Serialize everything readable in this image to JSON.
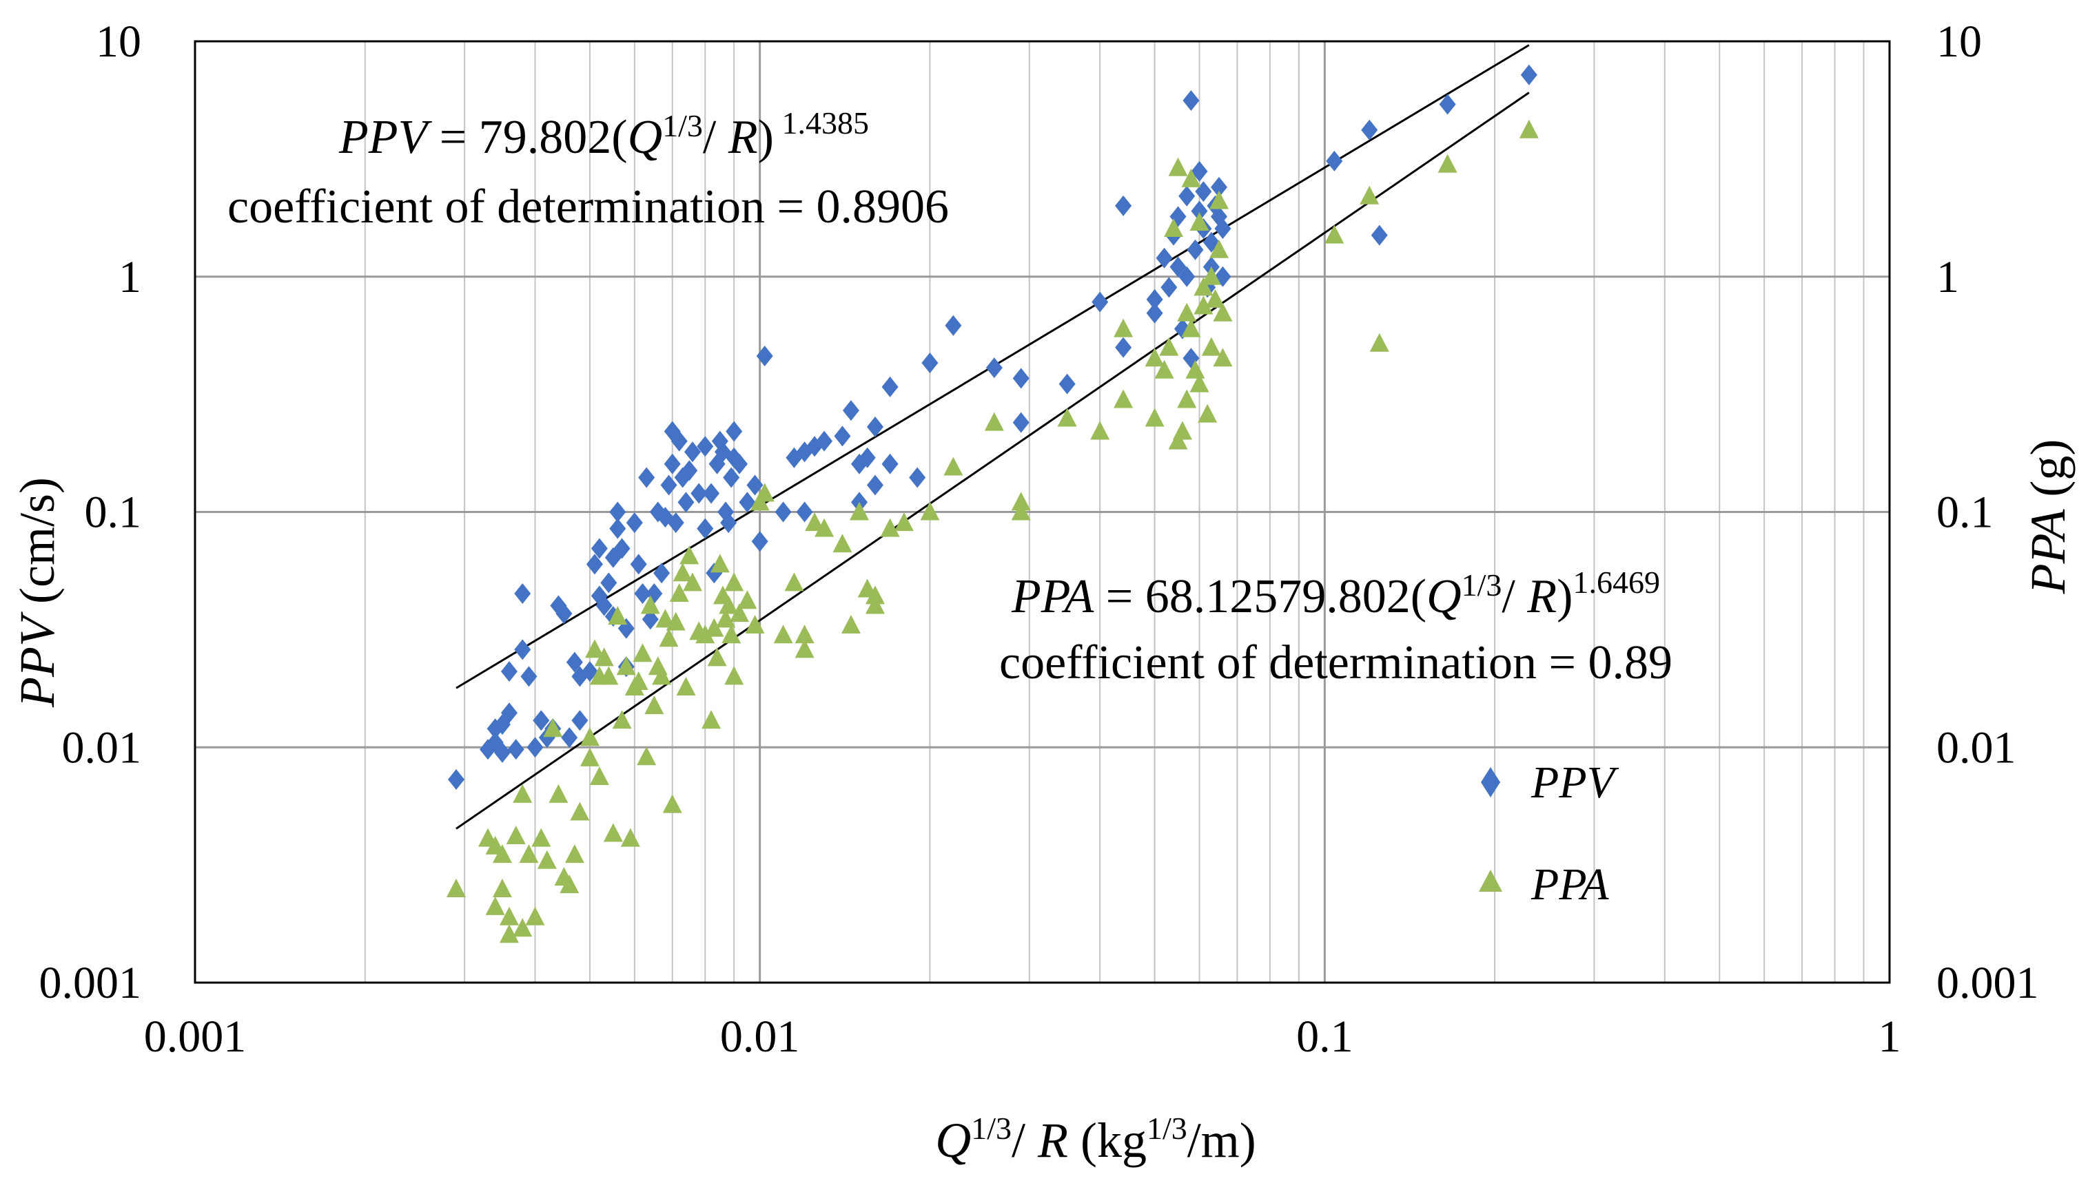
{
  "chart_data": {
    "type": "scatter",
    "title": "",
    "xscale": "log",
    "yscale": "log",
    "xlim": [
      0.001,
      1
    ],
    "ylim": [
      0.001,
      10
    ],
    "x_ticks": [
      "0.001",
      "0.01",
      "0.1",
      "1"
    ],
    "y_ticks": [
      "0.001",
      "0.01",
      "0.1",
      "1",
      "10"
    ],
    "y2_ticks": [
      "0.001",
      "0.01",
      "0.1",
      "1",
      "10"
    ],
    "xlabel": {
      "a": "Q",
      "a_sup": "1/3",
      "b": "/ ",
      "c": "R",
      "d": " (kg",
      "d_sup": "1/3",
      "e": "/m)"
    },
    "ylabel": {
      "a": "PPV",
      "b": " (cm/s)"
    },
    "y2label": {
      "a": "PPA",
      "b": " (g)"
    },
    "grid": true,
    "legend": [
      {
        "label": "PPV",
        "marker": "diamond",
        "color": "#4472C4"
      },
      {
        "label": "PPA",
        "marker": "triangle",
        "color": "#9BBB59"
      }
    ],
    "annotations": {
      "ppv_eq": {
        "a": "PPV",
        "b": " = 79.802(",
        "c": "Q",
        "c_sup": "1/3",
        "d": "/ ",
        "e": "R",
        "f": ")",
        "exp": " 1.4385"
      },
      "ppv_r2": "coefficient of determination = 0.8906",
      "ppa_eq": {
        "a": "PPA",
        "b": " = 68.12579.802(",
        "c": "Q",
        "c_sup": "1/3",
        "d": "/ ",
        "e": "R",
        "f": ")",
        "exp": "1.6469"
      },
      "ppa_r2": "coefficient of determination = 0.89"
    },
    "fits": [
      {
        "name": "PPV fit",
        "coef": 79.802,
        "exp": 1.4385,
        "xrange": [
          0.0029,
          0.23
        ]
      },
      {
        "name": "PPA fit",
        "coef": 68.12579802,
        "exp": 1.6469,
        "xrange": [
          0.0029,
          0.23
        ]
      }
    ],
    "series": [
      {
        "name": "PPV",
        "points": [
          [
            0.0029,
            0.0073
          ],
          [
            0.0033,
            0.0098
          ],
          [
            0.0034,
            0.0105
          ],
          [
            0.0035,
            0.0095
          ],
          [
            0.0034,
            0.012
          ],
          [
            0.0036,
            0.014
          ],
          [
            0.0035,
            0.0125
          ],
          [
            0.0036,
            0.021
          ],
          [
            0.0037,
            0.0098
          ],
          [
            0.0038,
            0.045
          ],
          [
            0.0038,
            0.026
          ],
          [
            0.0039,
            0.02
          ],
          [
            0.004,
            0.01
          ],
          [
            0.0041,
            0.013
          ],
          [
            0.0042,
            0.011
          ],
          [
            0.0043,
            0.012
          ],
          [
            0.0044,
            0.04
          ],
          [
            0.0045,
            0.037
          ],
          [
            0.0046,
            0.011
          ],
          [
            0.0047,
            0.023
          ],
          [
            0.0048,
            0.02
          ],
          [
            0.0048,
            0.013
          ],
          [
            0.005,
            0.021
          ],
          [
            0.0051,
            0.06
          ],
          [
            0.0052,
            0.07
          ],
          [
            0.0052,
            0.044
          ],
          [
            0.0053,
            0.04
          ],
          [
            0.0054,
            0.05
          ],
          [
            0.0055,
            0.064
          ],
          [
            0.0055,
            0.036
          ],
          [
            0.0056,
            0.1
          ],
          [
            0.0056,
            0.085
          ],
          [
            0.0057,
            0.07
          ],
          [
            0.0058,
            0.032
          ],
          [
            0.0058,
            0.022
          ],
          [
            0.006,
            0.09
          ],
          [
            0.0061,
            0.06
          ],
          [
            0.0062,
            0.045
          ],
          [
            0.0063,
            0.14
          ],
          [
            0.0064,
            0.035
          ],
          [
            0.0065,
            0.045
          ],
          [
            0.0066,
            0.1
          ],
          [
            0.0067,
            0.055
          ],
          [
            0.0068,
            0.095
          ],
          [
            0.0069,
            0.13
          ],
          [
            0.007,
            0.16
          ],
          [
            0.007,
            0.22
          ],
          [
            0.0071,
            0.09
          ],
          [
            0.0072,
            0.2
          ],
          [
            0.0073,
            0.14
          ],
          [
            0.0074,
            0.11
          ],
          [
            0.0075,
            0.15
          ],
          [
            0.0076,
            0.18
          ],
          [
            0.0078,
            0.12
          ],
          [
            0.008,
            0.085
          ],
          [
            0.008,
            0.19
          ],
          [
            0.0082,
            0.12
          ],
          [
            0.0083,
            0.055
          ],
          [
            0.0084,
            0.16
          ],
          [
            0.0085,
            0.2
          ],
          [
            0.0086,
            0.18
          ],
          [
            0.0087,
            0.1
          ],
          [
            0.0088,
            0.09
          ],
          [
            0.0089,
            0.14
          ],
          [
            0.009,
            0.17
          ],
          [
            0.009,
            0.22
          ],
          [
            0.0092,
            0.16
          ],
          [
            0.0095,
            0.11
          ],
          [
            0.0098,
            0.13
          ],
          [
            0.01,
            0.075
          ],
          [
            0.0102,
            0.46
          ],
          [
            0.011,
            0.1
          ],
          [
            0.0115,
            0.17
          ],
          [
            0.012,
            0.1
          ],
          [
            0.012,
            0.18
          ],
          [
            0.0125,
            0.19
          ],
          [
            0.013,
            0.2
          ],
          [
            0.014,
            0.21
          ],
          [
            0.0145,
            0.27
          ],
          [
            0.015,
            0.11
          ],
          [
            0.015,
            0.16
          ],
          [
            0.0155,
            0.17
          ],
          [
            0.016,
            0.13
          ],
          [
            0.016,
            0.23
          ],
          [
            0.017,
            0.34
          ],
          [
            0.017,
            0.16
          ],
          [
            0.019,
            0.14
          ],
          [
            0.02,
            0.43
          ],
          [
            0.022,
            0.62
          ],
          [
            0.026,
            0.41
          ],
          [
            0.029,
            0.37
          ],
          [
            0.029,
            0.24
          ],
          [
            0.035,
            0.35
          ],
          [
            0.04,
            0.78
          ],
          [
            0.044,
            0.5
          ],
          [
            0.044,
            2.0
          ],
          [
            0.05,
            0.8
          ],
          [
            0.05,
            0.7
          ],
          [
            0.052,
            1.2
          ],
          [
            0.053,
            0.9
          ],
          [
            0.054,
            1.5
          ],
          [
            0.055,
            1.8
          ],
          [
            0.055,
            1.1
          ],
          [
            0.056,
            0.6
          ],
          [
            0.057,
            1.0
          ],
          [
            0.057,
            2.2
          ],
          [
            0.058,
            0.45
          ],
          [
            0.058,
            5.6
          ],
          [
            0.059,
            1.3
          ],
          [
            0.06,
            1.9
          ],
          [
            0.06,
            2.8
          ],
          [
            0.061,
            1.6
          ],
          [
            0.061,
            2.3
          ],
          [
            0.062,
            0.9
          ],
          [
            0.063,
            1.4
          ],
          [
            0.063,
            1.1
          ],
          [
            0.064,
            2.0
          ],
          [
            0.065,
            1.8
          ],
          [
            0.065,
            2.4
          ],
          [
            0.066,
            1.0
          ],
          [
            0.066,
            1.6
          ],
          [
            0.104,
            3.1
          ],
          [
            0.12,
            4.2
          ],
          [
            0.125,
            1.5
          ],
          [
            0.165,
            5.4
          ],
          [
            0.23,
            7.2
          ]
        ]
      },
      {
        "name": "PPA",
        "points": [
          [
            0.0029,
            0.0025
          ],
          [
            0.0033,
            0.0041
          ],
          [
            0.0034,
            0.0038
          ],
          [
            0.0034,
            0.0021
          ],
          [
            0.0035,
            0.0035
          ],
          [
            0.0035,
            0.0025
          ],
          [
            0.0036,
            0.0016
          ],
          [
            0.0036,
            0.0019
          ],
          [
            0.0037,
            0.0042
          ],
          [
            0.0038,
            0.0017
          ],
          [
            0.0038,
            0.0063
          ],
          [
            0.0039,
            0.0035
          ],
          [
            0.004,
            0.0019
          ],
          [
            0.0041,
            0.0041
          ],
          [
            0.0042,
            0.0033
          ],
          [
            0.0043,
            0.012
          ],
          [
            0.0044,
            0.0063
          ],
          [
            0.0045,
            0.0028
          ],
          [
            0.0046,
            0.0026
          ],
          [
            0.0047,
            0.0035
          ],
          [
            0.0048,
            0.0053
          ],
          [
            0.005,
            0.011
          ],
          [
            0.005,
            0.009
          ],
          [
            0.0051,
            0.026
          ],
          [
            0.0052,
            0.02
          ],
          [
            0.0052,
            0.0075
          ],
          [
            0.0053,
            0.024
          ],
          [
            0.0054,
            0.02
          ],
          [
            0.0055,
            0.0043
          ],
          [
            0.0056,
            0.036
          ],
          [
            0.0057,
            0.013
          ],
          [
            0.0058,
            0.022
          ],
          [
            0.0059,
            0.0041
          ],
          [
            0.006,
            0.018
          ],
          [
            0.0061,
            0.019
          ],
          [
            0.0062,
            0.025
          ],
          [
            0.0063,
            0.0091
          ],
          [
            0.0064,
            0.04
          ],
          [
            0.0065,
            0.015
          ],
          [
            0.0066,
            0.022
          ],
          [
            0.0067,
            0.02
          ],
          [
            0.0068,
            0.035
          ],
          [
            0.0069,
            0.029
          ],
          [
            0.007,
            0.0057
          ],
          [
            0.0071,
            0.034
          ],
          [
            0.0072,
            0.045
          ],
          [
            0.0073,
            0.055
          ],
          [
            0.0074,
            0.018
          ],
          [
            0.0075,
            0.065
          ],
          [
            0.0076,
            0.05
          ],
          [
            0.0078,
            0.031
          ],
          [
            0.008,
            0.03
          ],
          [
            0.0082,
            0.013
          ],
          [
            0.0083,
            0.032
          ],
          [
            0.0084,
            0.024
          ],
          [
            0.0085,
            0.06
          ],
          [
            0.0086,
            0.044
          ],
          [
            0.0087,
            0.035
          ],
          [
            0.0088,
            0.04
          ],
          [
            0.0089,
            0.03
          ],
          [
            0.009,
            0.02
          ],
          [
            0.009,
            0.05
          ],
          [
            0.0092,
            0.037
          ],
          [
            0.0095,
            0.042
          ],
          [
            0.0098,
            0.033
          ],
          [
            0.01,
            0.11
          ],
          [
            0.0102,
            0.12
          ],
          [
            0.011,
            0.03
          ],
          [
            0.0115,
            0.05
          ],
          [
            0.012,
            0.026
          ],
          [
            0.012,
            0.03
          ],
          [
            0.0125,
            0.09
          ],
          [
            0.013,
            0.085
          ],
          [
            0.014,
            0.073
          ],
          [
            0.0145,
            0.033
          ],
          [
            0.015,
            0.1
          ],
          [
            0.0155,
            0.047
          ],
          [
            0.016,
            0.04
          ],
          [
            0.016,
            0.044
          ],
          [
            0.017,
            0.085
          ],
          [
            0.018,
            0.09
          ],
          [
            0.02,
            0.1
          ],
          [
            0.022,
            0.155
          ],
          [
            0.026,
            0.24
          ],
          [
            0.029,
            0.11
          ],
          [
            0.029,
            0.1
          ],
          [
            0.035,
            0.25
          ],
          [
            0.04,
            0.22
          ],
          [
            0.044,
            0.3
          ],
          [
            0.044,
            0.6
          ],
          [
            0.05,
            0.25
          ],
          [
            0.05,
            0.45
          ],
          [
            0.052,
            0.4
          ],
          [
            0.053,
            0.5
          ],
          [
            0.054,
            1.6
          ],
          [
            0.055,
            2.9
          ],
          [
            0.055,
            0.2
          ],
          [
            0.056,
            0.22
          ],
          [
            0.057,
            0.3
          ],
          [
            0.057,
            0.7
          ],
          [
            0.058,
            2.6
          ],
          [
            0.058,
            0.6
          ],
          [
            0.059,
            0.4
          ],
          [
            0.06,
            0.35
          ],
          [
            0.06,
            1.7
          ],
          [
            0.061,
            0.9
          ],
          [
            0.061,
            0.75
          ],
          [
            0.062,
            0.26
          ],
          [
            0.063,
            1.0
          ],
          [
            0.063,
            0.5
          ],
          [
            0.064,
            0.8
          ],
          [
            0.065,
            2.1
          ],
          [
            0.065,
            1.3
          ],
          [
            0.066,
            0.45
          ],
          [
            0.066,
            0.7
          ],
          [
            0.104,
            1.5
          ],
          [
            0.12,
            2.2
          ],
          [
            0.125,
            0.52
          ],
          [
            0.165,
            3.0
          ],
          [
            0.23,
            4.2
          ]
        ]
      }
    ]
  }
}
